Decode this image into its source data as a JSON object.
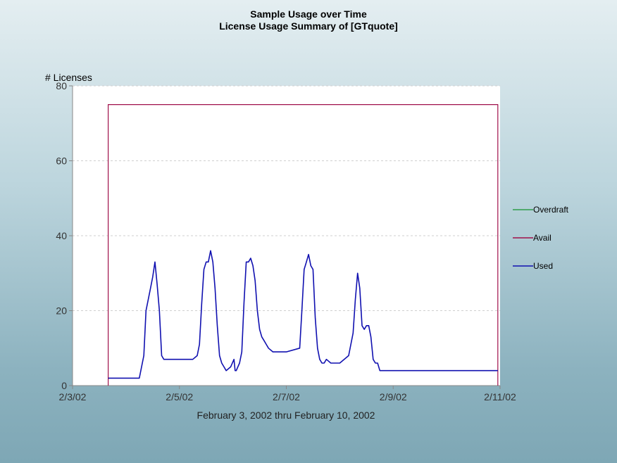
{
  "titles": {
    "line1": "Sample Usage over Time",
    "line2": "License Usage Summary of [GTquote]"
  },
  "chart_data": {
    "type": "line",
    "title": "Sample Usage over Time",
    "subtitle": "License Usage Summary of [GTquote]",
    "ylabel": "# Licenses",
    "xlabel": "February 3, 2002 thru February 10, 2002",
    "ylim": [
      0,
      80
    ],
    "yticks": [
      0,
      20,
      40,
      60,
      80
    ],
    "xlim": [
      "2002-02-03",
      "2002-02-11"
    ],
    "xticks": [
      "2/3/02",
      "2/5/02",
      "2/7/02",
      "2/9/02",
      "2/11/02"
    ],
    "grid": "horizontal dashed",
    "legend_position": "right",
    "series": [
      {
        "name": "Overdraft",
        "color": "#2e9e4a",
        "x": [],
        "y": []
      },
      {
        "name": "Avail",
        "color": "#a0104a",
        "x": [
          "2002-02-03 16:00",
          "2002-02-03 16:00",
          "2002-02-10 23:00",
          "2002-02-10 23:00"
        ],
        "y": [
          0,
          75,
          75,
          0
        ]
      },
      {
        "name": "Used",
        "color": "#1010b0",
        "x": [
          "2002-02-03 16:00",
          "2002-02-04 06:00",
          "2002-02-04 07:00",
          "2002-02-04 08:00",
          "2002-02-04 09:00",
          "2002-02-04 10:00",
          "2002-02-04 11:00",
          "2002-02-04 12:00",
          "2002-02-04 13:00",
          "2002-02-04 14:00",
          "2002-02-04 15:00",
          "2002-02-04 16:00",
          "2002-02-04 17:00",
          "2002-02-04 18:00",
          "2002-02-04 19:00",
          "2002-02-04 20:00",
          "2002-02-05 06:00",
          "2002-02-05 08:00",
          "2002-02-05 09:00",
          "2002-02-05 10:00",
          "2002-02-05 11:00",
          "2002-02-05 12:00",
          "2002-02-05 13:00",
          "2002-02-05 14:00",
          "2002-02-05 15:00",
          "2002-02-05 16:00",
          "2002-02-05 17:00",
          "2002-02-05 18:00",
          "2002-02-05 19:00",
          "2002-02-05 20:00",
          "2002-02-05 21:00",
          "2002-02-05 23:00",
          "2002-02-06 00:30",
          "2002-02-06 01:00",
          "2002-02-06 01:30",
          "2002-02-06 03:00",
          "2002-02-06 04:00",
          "2002-02-06 05:00",
          "2002-02-06 06:00",
          "2002-02-06 07:00",
          "2002-02-06 08:00",
          "2002-02-06 09:00",
          "2002-02-06 10:00",
          "2002-02-06 11:00",
          "2002-02-06 12:00",
          "2002-02-06 13:00",
          "2002-02-06 14:00",
          "2002-02-06 15:00",
          "2002-02-06 16:00",
          "2002-02-06 18:00",
          "2002-02-06 20:00",
          "2002-02-06 22:00",
          "2002-02-07 00:00",
          "2002-02-07 06:00",
          "2002-02-07 07:00",
          "2002-02-07 08:00",
          "2002-02-07 09:00",
          "2002-02-07 10:00",
          "2002-02-07 11:00",
          "2002-02-07 12:00",
          "2002-02-07 13:00",
          "2002-02-07 14:00",
          "2002-02-07 15:00",
          "2002-02-07 16:00",
          "2002-02-07 17:00",
          "2002-02-07 18:00",
          "2002-02-07 20:00",
          "2002-02-07 22:00",
          "2002-02-08 00:00",
          "2002-02-08 04:00",
          "2002-02-08 06:00",
          "2002-02-08 07:00",
          "2002-02-08 08:00",
          "2002-02-08 09:00",
          "2002-02-08 10:00",
          "2002-02-08 11:00",
          "2002-02-08 12:00",
          "2002-02-08 13:00",
          "2002-02-08 14:00",
          "2002-02-08 15:00",
          "2002-02-08 16:00",
          "2002-02-08 17:00",
          "2002-02-08 18:00",
          "2002-02-08 19:00",
          "2002-02-08 20:00",
          "2002-02-08 22:00",
          "2002-02-09 00:00",
          "2002-02-10 23:00"
        ],
        "y": [
          2,
          2,
          5,
          8,
          20,
          23,
          26,
          29,
          33,
          27,
          20,
          8,
          7,
          7,
          7,
          7,
          7,
          8,
          11,
          22,
          31,
          33,
          33,
          36,
          33,
          26,
          16,
          8,
          6,
          5,
          4,
          5,
          7,
          4,
          4,
          6,
          9,
          22,
          33,
          33,
          34,
          32,
          28,
          20,
          15,
          13,
          12,
          11,
          10,
          9,
          9,
          9,
          9,
          10,
          20,
          31,
          33,
          35,
          32,
          31,
          18,
          10,
          7,
          6,
          6,
          7,
          6,
          6,
          6,
          8,
          14,
          23,
          30,
          26,
          16,
          15,
          16,
          16,
          13,
          7,
          6,
          6,
          4,
          4,
          4,
          4,
          4,
          4
        ]
      }
    ]
  }
}
